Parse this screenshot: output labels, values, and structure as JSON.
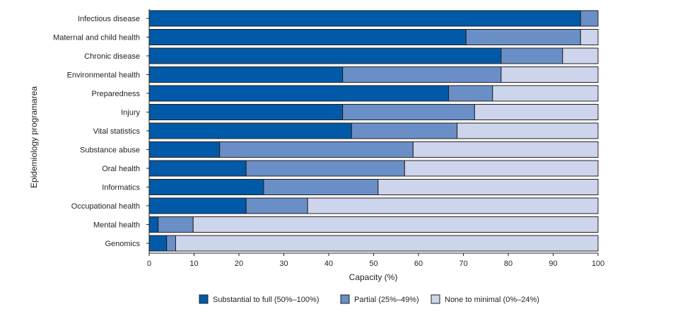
{
  "chart_data": {
    "type": "bar",
    "orientation": "horizontal",
    "stacked": true,
    "title": "",
    "xlabel": "Capacity (%)",
    "ylabel": "Epidemiology programarea",
    "xlim": [
      0,
      100
    ],
    "x_ticks": [
      "0",
      "10",
      "20",
      "30",
      "40",
      "50",
      "60",
      "70",
      "80",
      "90",
      "100"
    ],
    "grid": false,
    "legend_position": "bottom",
    "categories": [
      "Infectious disease",
      "Maternal and child health",
      "Chronic disease",
      "Environmental health",
      "Preparedness",
      "Injury",
      "Vital statistics",
      "Substance abuse",
      "Oral health",
      "Informatics",
      "Occupational health",
      "Mental health",
      "Genomics"
    ],
    "series": [
      {
        "name": "Substantial to full (50%–100%)",
        "color": "#005aa7",
        "values": [
          96.1,
          70.6,
          78.4,
          43.1,
          66.7,
          43.1,
          45.1,
          15.7,
          21.6,
          25.5,
          21.6,
          2.0,
          3.9
        ]
      },
      {
        "name": "Partial (25%–49%)",
        "color": "#6a8fc7",
        "values": [
          3.9,
          25.5,
          13.7,
          35.3,
          9.8,
          29.4,
          23.5,
          43.1,
          35.3,
          25.5,
          13.7,
          7.8,
          2.0
        ]
      },
      {
        "name": "None to minimal (0%–24%)",
        "color": "#cdd5ec",
        "values": [
          0.0,
          3.9,
          7.9,
          21.6,
          23.5,
          27.5,
          31.4,
          41.2,
          43.1,
          49.0,
          64.7,
          90.2,
          94.1
        ]
      }
    ]
  }
}
